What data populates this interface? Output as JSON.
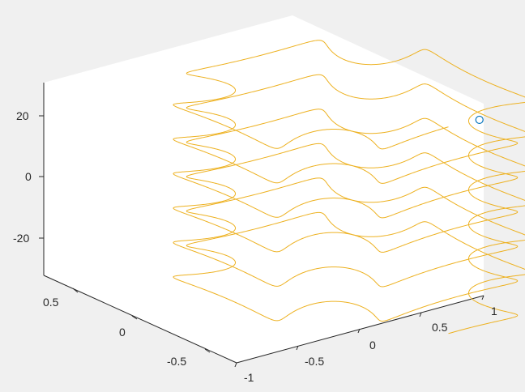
{
  "chart_data": {
    "type": "line3d",
    "title": "",
    "xlabel": "",
    "ylabel": "",
    "zlabel": "",
    "xlim": [
      -1,
      1
    ],
    "ylim": [
      -1,
      1
    ],
    "zlim": [
      -35,
      30
    ],
    "x_ticks": [
      "-1",
      "-0.5",
      "0",
      "0.5",
      "1"
    ],
    "y_ticks": [
      "-0.5",
      "0",
      "0.5"
    ],
    "z_ticks": [
      "-20",
      "0",
      "20"
    ],
    "grid": false,
    "series": [
      {
        "kind": "curve",
        "color": "#EDB120",
        "description": "parametric curve: x=sin(t)+0.25*sin(6t)*cos(t), y=-cos(t)-0.25*sin(6t)*sin(t), z=1.8*t+0.25*cos(6t), t from -6pi to 6pi"
      },
      {
        "kind": "marker",
        "marker": "circle",
        "color": "#0072BD",
        "x": 0.25,
        "y": -1,
        "z": 33.75
      }
    ]
  }
}
